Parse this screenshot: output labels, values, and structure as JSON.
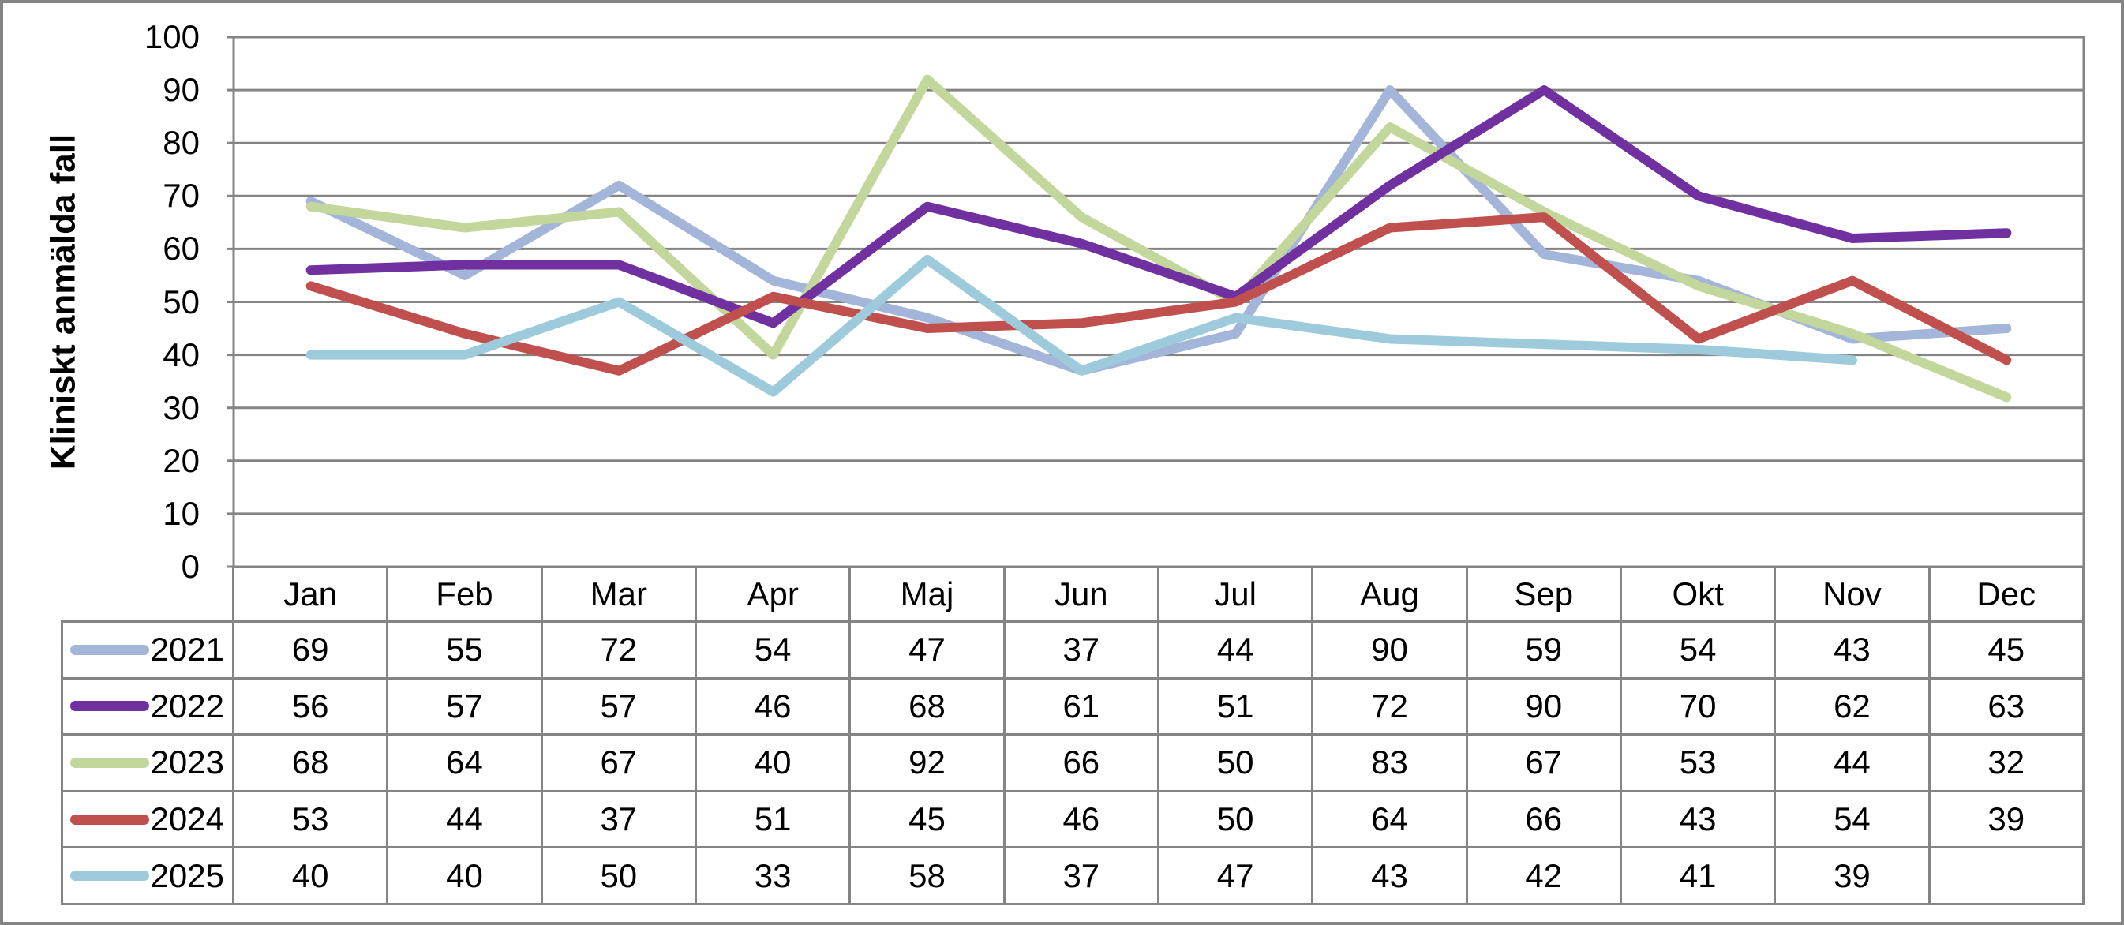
{
  "chart_data": {
    "type": "line",
    "title": "",
    "xlabel": "",
    "ylabel": "Kliniskt anmälda fall",
    "ylim": [
      0,
      100
    ],
    "ytick_step": 10,
    "yticks": [
      "100",
      "90",
      "80",
      "70",
      "60",
      "50",
      "40",
      "30",
      "20",
      "10",
      "0"
    ],
    "grid": true,
    "grid_color": "#848484",
    "legend_position": "table-left",
    "categories": [
      "Jan",
      "Feb",
      "Mar",
      "Apr",
      "Maj",
      "Jun",
      "Jul",
      "Aug",
      "Sep",
      "Okt",
      "Nov",
      "Dec"
    ],
    "series": [
      {
        "name": "2021",
        "color": "#A3B5D9",
        "values": [
          69,
          55,
          72,
          54,
          47,
          37,
          44,
          90,
          59,
          54,
          43,
          45
        ]
      },
      {
        "name": "2022",
        "color": "#7030A0",
        "values": [
          56,
          57,
          57,
          46,
          68,
          61,
          51,
          72,
          90,
          70,
          62,
          63
        ]
      },
      {
        "name": "2023",
        "color": "#C3D69B",
        "values": [
          68,
          64,
          67,
          40,
          92,
          66,
          50,
          83,
          67,
          53,
          44,
          32
        ]
      },
      {
        "name": "2024",
        "color": "#C0504D",
        "values": [
          53,
          44,
          37,
          51,
          45,
          46,
          50,
          64,
          66,
          43,
          54,
          39
        ]
      },
      {
        "name": "2025",
        "color": "#9DCBDC",
        "values": [
          40,
          40,
          50,
          33,
          58,
          37,
          47,
          43,
          42,
          41,
          39,
          null
        ]
      }
    ]
  }
}
